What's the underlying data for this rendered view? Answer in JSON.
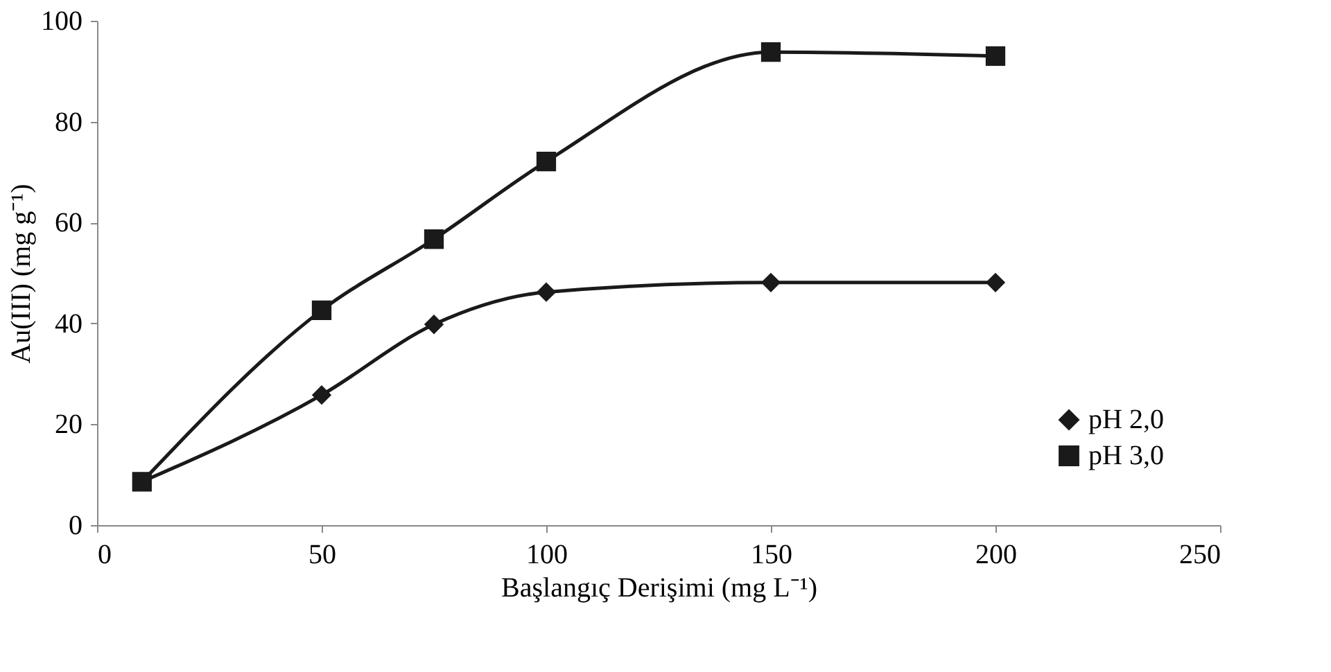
{
  "chart_data": {
    "type": "line",
    "xlabel": "Başlangıç Derişimi (mg L⁻¹)",
    "ylabel": "Au(III) (mg g⁻¹)",
    "x": [
      10,
      50,
      75,
      100,
      150,
      200
    ],
    "series": [
      {
        "name": "pH 2,0",
        "color": "#1a1a1a",
        "marker": "diamond",
        "values": [
          8.6,
          25.8,
          39.8,
          46.2,
          48.1,
          48.1
        ]
      },
      {
        "name": "pH 3,0",
        "color": "#1a1a1a",
        "marker": "square",
        "values": [
          8.6,
          42.6,
          56.7,
          72.1,
          93.8,
          93.0
        ]
      }
    ],
    "xlim": [
      0,
      250
    ],
    "xticks": [
      0,
      50,
      100,
      150,
      200,
      250
    ],
    "ylim": [
      0,
      100
    ],
    "yticks": [
      0,
      20,
      40,
      60,
      80,
      100
    ],
    "grid": false,
    "legend": "bottom right",
    "line_style": "solid"
  }
}
